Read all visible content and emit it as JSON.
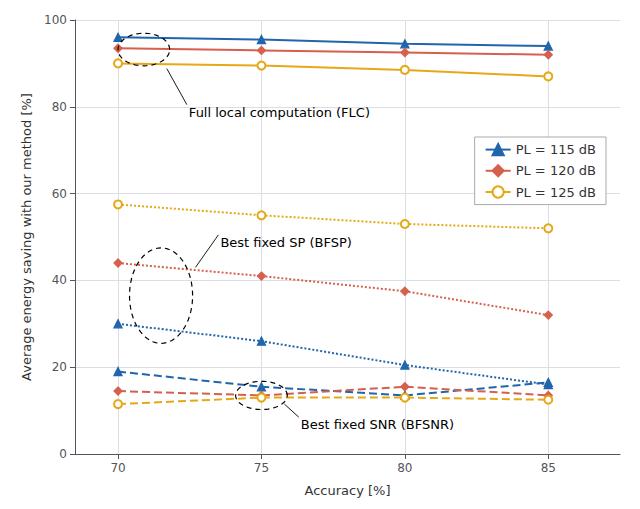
{
  "chart_data": {
    "type": "line",
    "xlabel": "Accuracy [%]",
    "ylabel": "Average energy saving with our method [%]",
    "x": [
      70,
      75,
      80,
      85
    ],
    "xlim": [
      68.5,
      87.5
    ],
    "xticks": [
      70,
      75,
      80,
      85
    ],
    "ylim": [
      0,
      100
    ],
    "yticks": [
      0,
      20,
      40,
      60,
      80,
      100
    ],
    "grid": true,
    "legend": "upper right",
    "series": [
      {
        "name": "PL = 115 dB",
        "color": "#2166ac",
        "marker": "triangle",
        "line_style": "solid",
        "values": [
          96.0,
          95.5,
          94.5,
          94.0
        ]
      },
      {
        "name": "PL = 120 dB",
        "color": "#d6604d",
        "marker": "diamond",
        "line_style": "solid",
        "values": [
          93.5,
          93.0,
          92.5,
          92.0
        ]
      },
      {
        "name": "PL = 125 dB",
        "color": "#e6a817",
        "marker": "open_circle",
        "line_style": "solid",
        "values": [
          90.0,
          89.5,
          88.5,
          87.0
        ]
      },
      {
        "name": "PL = 115 dB",
        "color": "#2166ac",
        "marker": "triangle",
        "line_style": "dotted",
        "values": [
          30.0,
          26.0,
          20.5,
          16.0
        ]
      },
      {
        "name": "PL = 120 dB",
        "color": "#d6604d",
        "marker": "diamond",
        "line_style": "dotted",
        "values": [
          44.0,
          41.0,
          37.5,
          32.0
        ]
      },
      {
        "name": "PL = 125 dB",
        "color": "#e6a817",
        "marker": "open_circle",
        "line_style": "dotted",
        "values": [
          57.5,
          55.0,
          53.0,
          52.0
        ]
      },
      {
        "name": "PL = 115 dB",
        "color": "#2166ac",
        "marker": "triangle",
        "line_style": "dashed",
        "values": [
          19.0,
          15.5,
          13.5,
          16.5
        ]
      },
      {
        "name": "PL = 120 dB",
        "color": "#d6604d",
        "marker": "diamond",
        "line_style": "dashed",
        "values": [
          14.5,
          13.5,
          15.5,
          13.5
        ]
      },
      {
        "name": "PL = 125 dB",
        "color": "#e6a817",
        "marker": "open_circle",
        "line_style": "dashed",
        "values": [
          11.5,
          13.0,
          13.0,
          12.5
        ]
      }
    ],
    "annotations": [
      {
        "text": "Full local computation (FLC)",
        "x": 72.4,
        "y": 80.5,
        "target": [
          71.7,
          88.8
        ],
        "ellipse": {
          "cx": 70.9,
          "cy": 93.2,
          "w": 1.8,
          "h": 7.5
        }
      },
      {
        "text": "Best fixed SP (BFSP)",
        "x": 73.5,
        "y": 50.5,
        "target": [
          72.7,
          43.0
        ],
        "ellipse": {
          "cx": 71.5,
          "cy": 36.5,
          "w": 2.2,
          "h": 22.0
        }
      },
      {
        "text": "Best fixed SNR (BFSNR)",
        "x": 76.3,
        "y": 8.5,
        "target": [
          75.8,
          11.5
        ],
        "ellipse": {
          "cx": 75.0,
          "cy": 13.5,
          "w": 1.8,
          "h": 6.5
        }
      }
    ]
  }
}
